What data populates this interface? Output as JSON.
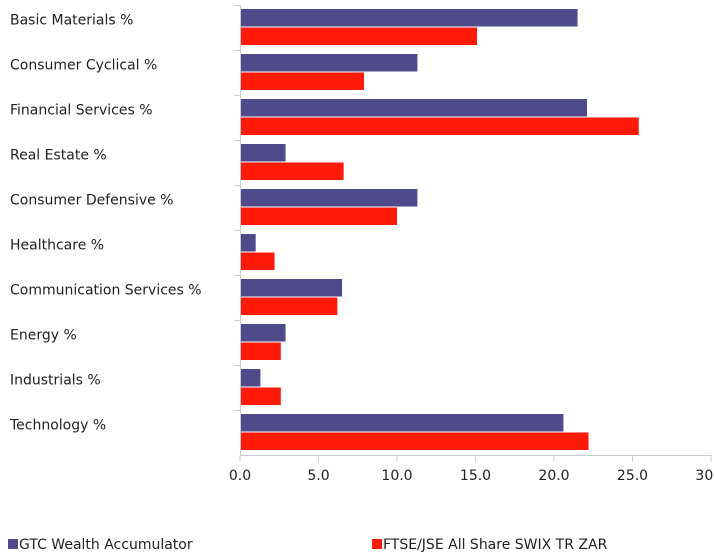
{
  "chart_data": {
    "type": "bar",
    "orientation": "horizontal",
    "categories": [
      "Basic Materials %",
      "Consumer Cyclical %",
      "Financial Services %",
      "Real Estate %",
      "Consumer Defensive %",
      "Healthcare %",
      "Communication Services %",
      "Energy %",
      "Industrials %",
      "Technology %"
    ],
    "series": [
      {
        "name": "GTC Wealth Accumulator",
        "color": "#4e4a8c",
        "values": [
          21.5,
          11.3,
          22.1,
          2.9,
          11.3,
          1.0,
          6.5,
          2.9,
          1.3,
          20.6
        ]
      },
      {
        "name": "FTSE/JSE All Share SWIX TR ZAR",
        "color": "#ff1a0a",
        "values": [
          15.1,
          7.9,
          25.4,
          6.6,
          10.0,
          2.2,
          6.2,
          2.6,
          2.6,
          22.2
        ]
      }
    ],
    "xlim": [
      0,
      30
    ],
    "xticks": [
      "0.0",
      "5.0",
      "10.0",
      "15.0",
      "20.0",
      "25.0",
      "30.0"
    ],
    "grid": false,
    "legend": "bottom"
  }
}
